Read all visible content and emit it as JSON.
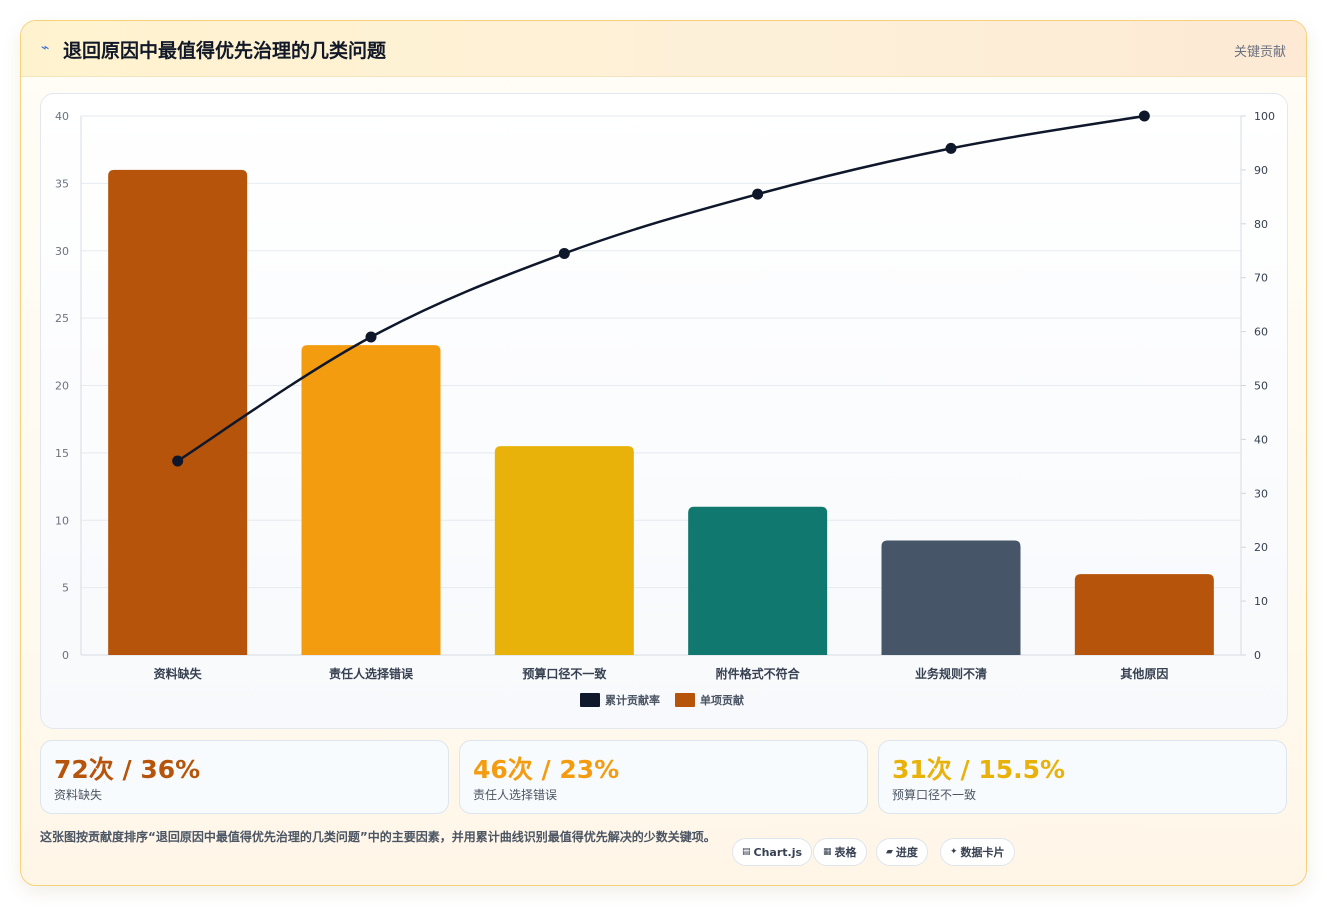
{
  "card": {
    "title_icon": "lightning-icon",
    "title": "退回原因中最值得优先治理的几类问题",
    "tag": "关键贡献"
  },
  "chart_data": {
    "type": "bar",
    "categories": [
      "资料缺失",
      "责任人选择错误",
      "预算口径不一致",
      "附件格式不符合",
      "业务规则不清",
      "其他原因"
    ],
    "series": [
      {
        "name": "单项贡献",
        "type": "bar",
        "axis": "left",
        "values": [
          36,
          23,
          15.5,
          11,
          8.5,
          6
        ],
        "colors": [
          "#b5540a",
          "#f39c0f",
          "#e8b20a",
          "#11786f",
          "#475569",
          "#b5540a"
        ]
      },
      {
        "name": "累计贡献率",
        "type": "line",
        "axis": "right",
        "values": [
          36,
          59,
          74.5,
          85.5,
          94,
          100
        ],
        "color": "#0f172a"
      }
    ],
    "ylim_left": [
      0,
      40
    ],
    "yticks_left": [
      0,
      5,
      10,
      15,
      20,
      25,
      30,
      35,
      40
    ],
    "ylim_right": [
      0,
      100
    ],
    "yticks_right": [
      0,
      10,
      20,
      30,
      40,
      50,
      60,
      70,
      80,
      90,
      100
    ],
    "grid": true,
    "legend_position": "bottom",
    "legend": [
      {
        "label": "累计贡献率",
        "color": "#0f172a"
      },
      {
        "label": "单项贡献",
        "color": "#b5540a"
      }
    ]
  },
  "stats": [
    {
      "value": "72次 / 36%",
      "label": "资料缺失",
      "color": "#b5540a"
    },
    {
      "value": "46次 / 23%",
      "label": "责任人选择错误",
      "color": "#f39c0f"
    },
    {
      "value": "31次 / 15.5%",
      "label": "预算口径不一致",
      "color": "#e8b20a"
    }
  ],
  "footnote": "这张图按贡献度排序“退回原因中最值得优先治理的几类问题”中的主要因素，并用累计曲线识别最值得优先解决的少数关键项。",
  "chips": [
    {
      "icon": "▤",
      "icon_name": "chart-icon",
      "label": "Chart.js"
    },
    {
      "icon": "▦",
      "icon_name": "table-icon",
      "label": "表格"
    },
    {
      "icon": "▰",
      "icon_name": "progress-icon",
      "label": "进度"
    },
    {
      "icon": "✦",
      "icon_name": "data-card-icon",
      "label": "数据卡片"
    }
  ]
}
